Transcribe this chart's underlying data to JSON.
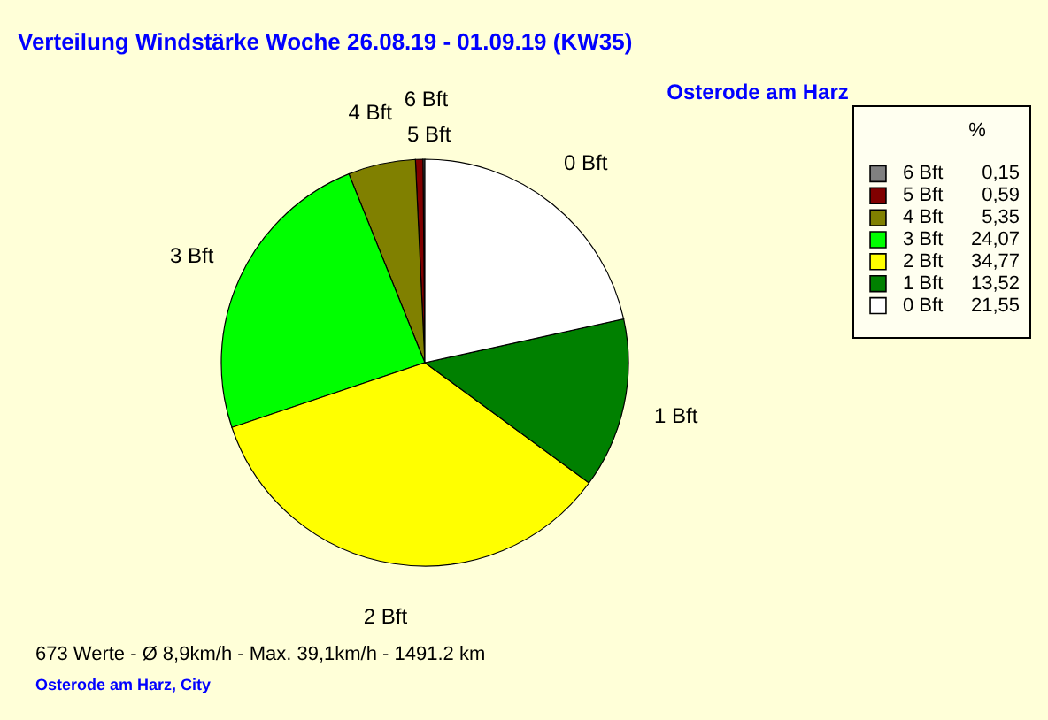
{
  "chart_data": {
    "type": "pie",
    "title": "Verteilung Windstärke  Woche 26.08.19 - 01.09.19 (KW35)",
    "subtitle": "Osterode am Harz",
    "categories": [
      "6 Bft",
      "5 Bft",
      "4 Bft",
      "3 Bft",
      "2 Bft",
      "1 Bft",
      "0 Bft"
    ],
    "values": [
      0.15,
      0.59,
      5.35,
      24.07,
      34.77,
      13.52,
      21.55
    ],
    "value_labels": [
      "0,15",
      "0,59",
      "5,35",
      "24,07",
      "34,77",
      "13,52",
      "21,55"
    ],
    "colors": [
      "#808080",
      "#800000",
      "#808000",
      "#00ff00",
      "#ffff00",
      "#008000",
      "#ffffff"
    ],
    "legend_title": "%",
    "legend": "right",
    "annotations": [
      "673 Werte   -   Ø 8,9km/h  -  Max. 39,1km/h   -   1491.2 km",
      "Osterode am Harz, City"
    ]
  }
}
